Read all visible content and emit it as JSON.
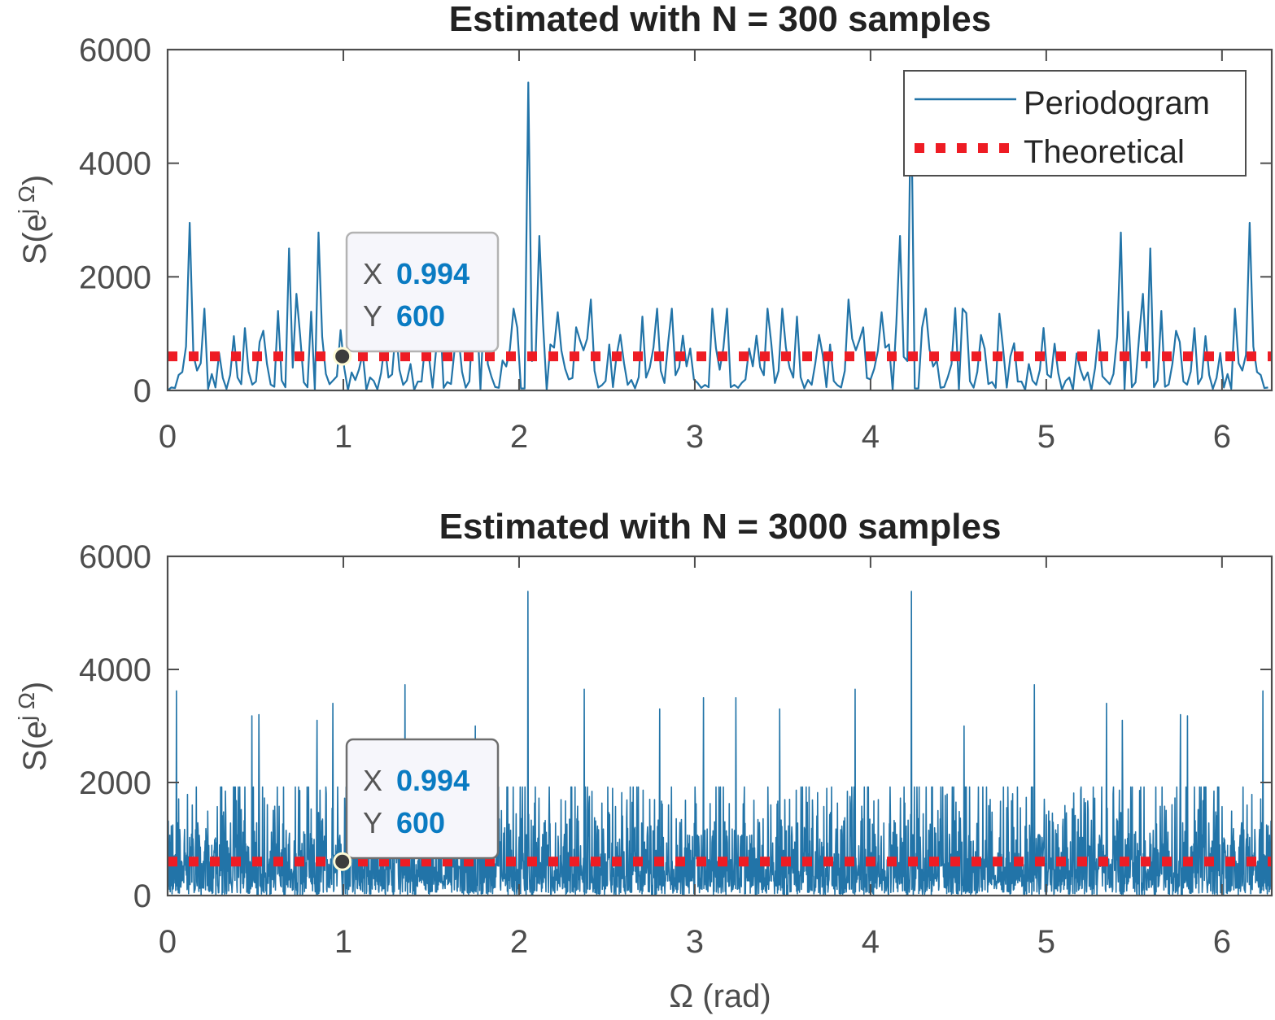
{
  "chart_data": [
    {
      "type": "line",
      "title": "Estimated with N = 300 samples",
      "xlabel": "",
      "ylabel": "S(e^{jΩ})",
      "ylabel_parts": {
        "base": "S(e",
        "sup": "j Ω",
        "close": ")"
      },
      "xlim": [
        0,
        6.2832
      ],
      "ylim": [
        0,
        6000
      ],
      "xticks": [
        0,
        1,
        2,
        3,
        4,
        5,
        6
      ],
      "xtick_labels": [
        "0",
        "1",
        "2",
        "3",
        "4",
        "5",
        "6"
      ],
      "yticks": [
        0,
        2000,
        4000,
        6000
      ],
      "ytick_labels": [
        "0",
        "2000",
        "4000",
        "6000"
      ],
      "grid": false,
      "legend": {
        "placement": "top-right",
        "entries": [
          "Periodogram",
          "Theoretical"
        ]
      },
      "series": [
        {
          "name": "Periodogram",
          "color": "#2274a8",
          "style": "solid",
          "num_points": 300,
          "symmetric_about_pi": true,
          "noise_mean": 450,
          "seed": 7,
          "peaks": [
            {
              "x": 0.12,
              "y": 2950
            },
            {
              "x": 0.55,
              "y": 1050
            },
            {
              "x": 0.62,
              "y": 1400
            },
            {
              "x": 0.69,
              "y": 2500
            },
            {
              "x": 0.74,
              "y": 1700
            },
            {
              "x": 0.86,
              "y": 2780
            },
            {
              "x": 1.3,
              "y": 1100
            },
            {
              "x": 1.55,
              "y": 1350
            },
            {
              "x": 1.8,
              "y": 1450
            },
            {
              "x": 2.05,
              "y": 5420
            },
            {
              "x": 2.12,
              "y": 2720
            },
            {
              "x": 2.4,
              "y": 1600
            },
            {
              "x": 2.7,
              "y": 1300
            }
          ]
        },
        {
          "name": "Theoretical",
          "color": "#ee1c24",
          "style": "dotted",
          "value": 600
        }
      ],
      "datatip": {
        "x_label": "X",
        "x_value": "0.994",
        "y_label": "Y",
        "y_value": "600",
        "x": 0.994,
        "y": 600
      }
    },
    {
      "type": "line",
      "title": "Estimated with N = 3000 samples",
      "xlabel": "Ω (rad)",
      "ylabel": "S(e^{jΩ})",
      "ylabel_parts": {
        "base": "S(e",
        "sup": "j Ω",
        "close": ")"
      },
      "xlim": [
        0,
        6.2832
      ],
      "ylim": [
        0,
        6000
      ],
      "xticks": [
        0,
        1,
        2,
        3,
        4,
        5,
        6
      ],
      "xtick_labels": [
        "0",
        "1",
        "2",
        "3",
        "4",
        "5",
        "6"
      ],
      "yticks": [
        0,
        2000,
        4000,
        6000
      ],
      "ytick_labels": [
        "0",
        "2000",
        "4000",
        "6000"
      ],
      "grid": false,
      "series": [
        {
          "name": "Periodogram",
          "color": "#2274a8",
          "style": "solid",
          "num_points": 3000,
          "symmetric_about_pi": true,
          "noise_mean": 600,
          "seed": 11,
          "peaks": [
            {
              "x": 0.05,
              "y": 3620
            },
            {
              "x": 0.48,
              "y": 3180
            },
            {
              "x": 0.52,
              "y": 3200
            },
            {
              "x": 0.85,
              "y": 3100
            },
            {
              "x": 0.94,
              "y": 3400
            },
            {
              "x": 1.35,
              "y": 3730
            },
            {
              "x": 1.75,
              "y": 3000
            },
            {
              "x": 2.05,
              "y": 5380
            },
            {
              "x": 2.37,
              "y": 3650
            },
            {
              "x": 2.8,
              "y": 3300
            },
            {
              "x": 3.05,
              "y": 3500
            }
          ]
        },
        {
          "name": "Theoretical",
          "color": "#ee1c24",
          "style": "dotted",
          "value": 600
        }
      ],
      "datatip": {
        "x_label": "X",
        "x_value": "0.994",
        "y_label": "Y",
        "y_value": "600",
        "x": 0.994,
        "y": 600
      }
    }
  ]
}
